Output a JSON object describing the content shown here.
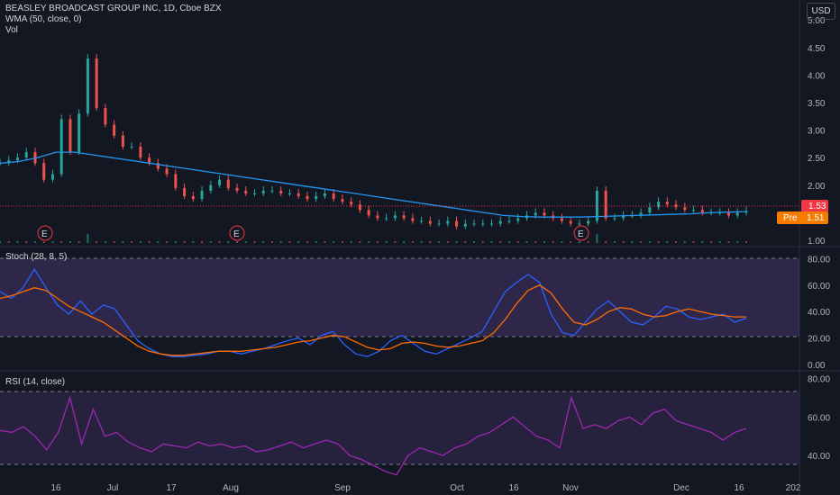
{
  "header": {
    "title": "BEASLEY BROADCAST GROUP INC, 1D, Cboe BZX",
    "wma": "WMA (50, close, 0)",
    "vol": "Vol",
    "currency": "USD"
  },
  "stoch_label": "Stoch (28, 8, 5)",
  "rsi_label": "RSI (14, close)",
  "last_price": "1.53",
  "pre_label": "Pre",
  "pre_price": "1.51",
  "earnings_marker": "E",
  "x_ticks": [
    "16",
    "Jul",
    "17",
    "Aug",
    "Sep",
    "Oct",
    "16",
    "Nov",
    "Dec",
    "16",
    "202"
  ],
  "colors": {
    "up": "#26a69a",
    "down": "#ef5350",
    "wma": "#2196f3",
    "k": "#2962ff",
    "d": "#f7525f",
    "rsi": "#9c27b0",
    "last": "#f23645",
    "pre": "#f57c00"
  },
  "chart_data": [
    {
      "type": "candlestick",
      "title": "BEASLEY BROADCAST GROUP INC, 1D, Cboe BZX",
      "y_ticks": [
        "5.00",
        "4.50",
        "4.00",
        "3.50",
        "3.00",
        "2.50",
        "2.00",
        "1.50",
        "1.00"
      ],
      "ylim": [
        0.95,
        5.2
      ],
      "close_series": [
        2.4,
        2.45,
        2.5,
        2.6,
        2.4,
        2.1,
        2.2,
        3.2,
        2.6,
        3.3,
        4.3,
        3.4,
        3.1,
        2.9,
        2.7,
        2.7,
        2.5,
        2.4,
        2.3,
        2.2,
        1.95,
        1.8,
        1.75,
        1.9,
        2.0,
        2.1,
        1.95,
        1.9,
        1.85,
        1.85,
        1.9,
        1.9,
        1.85,
        1.85,
        1.8,
        1.75,
        1.8,
        1.85,
        1.75,
        1.7,
        1.65,
        1.55,
        1.45,
        1.4,
        1.4,
        1.45,
        1.4,
        1.35,
        1.35,
        1.3,
        1.3,
        1.35,
        1.25,
        1.3,
        1.3,
        1.3,
        1.3,
        1.35,
        1.35,
        1.4,
        1.45,
        1.5,
        1.45,
        1.4,
        1.35,
        1.3,
        1.3,
        1.35,
        1.9,
        1.4,
        1.4,
        1.45,
        1.45,
        1.5,
        1.6,
        1.7,
        1.65,
        1.6,
        1.55,
        1.55,
        1.5,
        1.5,
        1.5,
        1.45,
        1.5,
        1.53
      ],
      "wma_series": [
        2.4,
        2.43,
        2.5,
        2.6,
        2.6,
        2.55,
        2.5,
        2.45,
        2.4,
        2.35,
        2.3,
        2.25,
        2.2,
        2.15,
        2.1,
        2.05,
        2.0,
        1.95,
        1.9,
        1.85,
        1.8,
        1.75,
        1.7,
        1.65,
        1.6,
        1.55,
        1.5,
        1.45,
        1.43,
        1.42,
        1.42,
        1.42,
        1.43,
        1.44,
        1.45,
        1.46,
        1.47,
        1.48,
        1.5,
        1.51,
        1.52
      ],
      "last_price": 1.53,
      "pre_price": 1.51
    },
    {
      "type": "line",
      "title": "Stoch (28, 8, 5)",
      "y_ticks": [
        "80.00",
        "60.00",
        "40.00",
        "20.00",
        "0.00"
      ],
      "ylim": [
        -2,
        85
      ],
      "bands": [
        20,
        80
      ],
      "series": [
        {
          "values": [
            55,
            50,
            58,
            72,
            58,
            45,
            38,
            48,
            38,
            45,
            42,
            30,
            18,
            12,
            8,
            6,
            6,
            7,
            8,
            10,
            10,
            8,
            10,
            12,
            15,
            18,
            20,
            15,
            22,
            25,
            15,
            8,
            6,
            10,
            18,
            22,
            16,
            10,
            8,
            12,
            16,
            20,
            25,
            40,
            55,
            62,
            68,
            62,
            38,
            24,
            22,
            32,
            42,
            48,
            40,
            32,
            30,
            36,
            44,
            42,
            36,
            34,
            36,
            38,
            32,
            35
          ]
        },
        {
          "values": [
            50,
            52,
            55,
            58,
            56,
            50,
            44,
            40,
            36,
            32,
            26,
            20,
            14,
            10,
            8,
            7,
            7,
            8,
            9,
            10,
            10,
            10,
            11,
            12,
            13,
            15,
            17,
            18,
            20,
            22,
            21,
            17,
            13,
            11,
            12,
            16,
            17,
            16,
            14,
            13,
            14,
            16,
            18,
            24,
            34,
            46,
            56,
            60,
            54,
            42,
            32,
            30,
            34,
            40,
            43,
            42,
            38,
            36,
            37,
            40,
            42,
            40,
            38,
            37,
            36,
            36
          ]
        }
      ]
    },
    {
      "type": "line",
      "title": "RSI (14, close)",
      "y_ticks": [
        "80.00",
        "60.00",
        "40.00"
      ],
      "ylim": [
        28,
        82
      ],
      "bands": [
        30,
        70
      ],
      "series": [
        {
          "values": [
            53,
            52,
            55,
            50,
            43,
            52,
            70,
            46,
            64,
            50,
            52,
            47,
            44,
            42,
            46,
            45,
            44,
            47,
            45,
            46,
            44,
            45,
            42,
            43,
            45,
            47,
            44,
            46,
            48,
            46,
            40,
            38,
            35,
            32,
            30,
            40,
            44,
            42,
            40,
            44,
            46,
            50,
            52,
            56,
            60,
            55,
            50,
            48,
            44,
            70,
            54,
            56,
            54,
            58,
            60,
            56,
            62,
            64,
            58,
            56,
            54,
            52,
            48,
            52,
            54
          ]
        }
      ]
    }
  ]
}
